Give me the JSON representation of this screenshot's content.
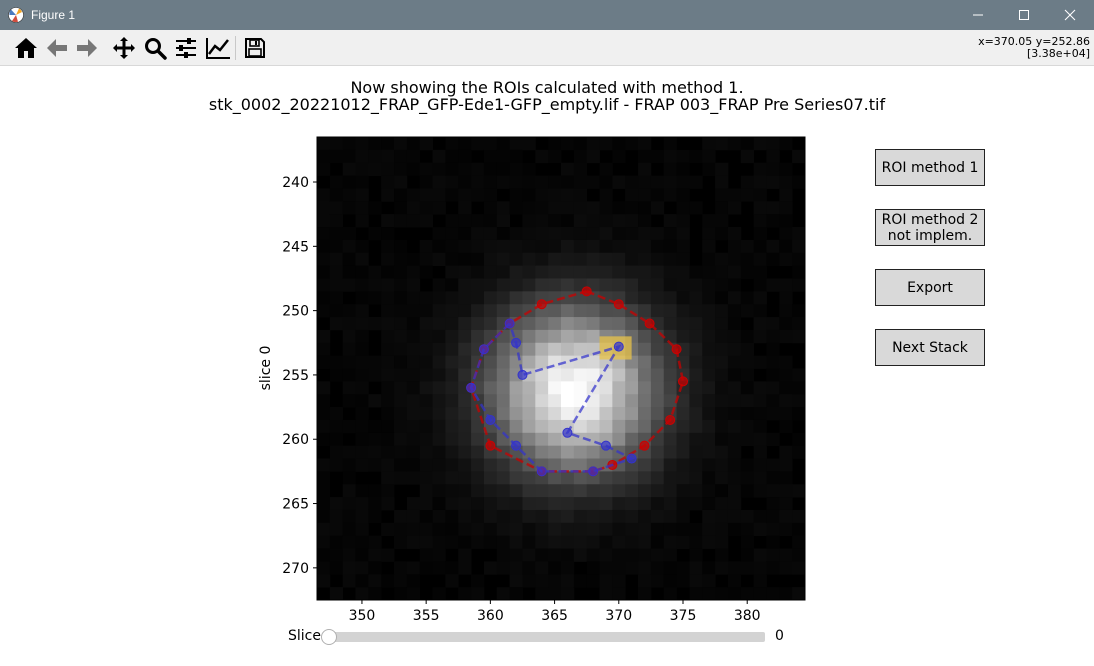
{
  "window": {
    "title": "Figure 1"
  },
  "toolbar": {
    "icons": [
      "home-icon",
      "back-arrow-icon",
      "forward-arrow-icon",
      "pan-icon",
      "zoom-icon",
      "configure-subplots-icon",
      "edit-axis-icon",
      "save-icon"
    ],
    "coords_line1": "x=370.05 y=252.86",
    "coords_line2": "[3.38e+04]"
  },
  "figure": {
    "title_line1": "Now showing the ROIs calculated with method 1.",
    "title_line2": "stk_0002_20221012_FRAP_GFP-Ede1-GFP_empty.lif - FRAP 003_FRAP Pre Series07.tif"
  },
  "buttons": {
    "roi1": "ROI method 1",
    "roi2": "ROI method 2\nnot implem.",
    "export": "Export",
    "next": "Next Stack"
  },
  "slider": {
    "label": "Slice",
    "value_text": "0",
    "value_fraction": 0.0
  },
  "chart_data": {
    "type": "heatmap",
    "title": "",
    "xlabel": "",
    "ylabel": "slice 0",
    "xlim": [
      346.5,
      384.5
    ],
    "ylim": [
      272.5,
      236.5
    ],
    "xticks": [
      350,
      355,
      360,
      365,
      370,
      375,
      380
    ],
    "yticks": [
      240,
      245,
      250,
      255,
      260,
      265,
      270
    ],
    "colormap": "gray",
    "image_blob": {
      "center_x": 366.5,
      "center_y": 256.2,
      "sigma": 4.2,
      "description_scale": "peak value 1 at center"
    },
    "series": [
      {
        "color": "#cc0000",
        "style": "dashed",
        "marker": "circle",
        "closed": true,
        "x": [
          367.5,
          370.0,
          372.4,
          374.5,
          375.0,
          374.0,
          372.0,
          369.5,
          368.0,
          364.0,
          360.0,
          358.5,
          359.5,
          361.5,
          364.0
        ],
        "y": [
          248.5,
          249.5,
          251.0,
          253.0,
          255.5,
          258.5,
          260.5,
          262.0,
          262.5,
          262.5,
          260.5,
          256.0,
          253.0,
          251.0,
          249.5
        ]
      },
      {
        "color": "#3333cc",
        "style": "dashed",
        "marker": "circle",
        "closed": true,
        "x": [
          361.5,
          359.5,
          358.5,
          360.0,
          362.0,
          364.0,
          368.0,
          371.0,
          369.0,
          366.0,
          370.0,
          362.5,
          362.0
        ],
        "y": [
          251.0,
          253.0,
          256.0,
          258.5,
          260.5,
          262.5,
          262.5,
          261.5,
          260.5,
          259.5,
          252.8,
          255.0,
          252.5
        ]
      }
    ],
    "highlight": {
      "color": "#e8c34a",
      "x": [
        368.5,
        371.0
      ],
      "y": [
        252.0,
        253.8
      ]
    }
  }
}
